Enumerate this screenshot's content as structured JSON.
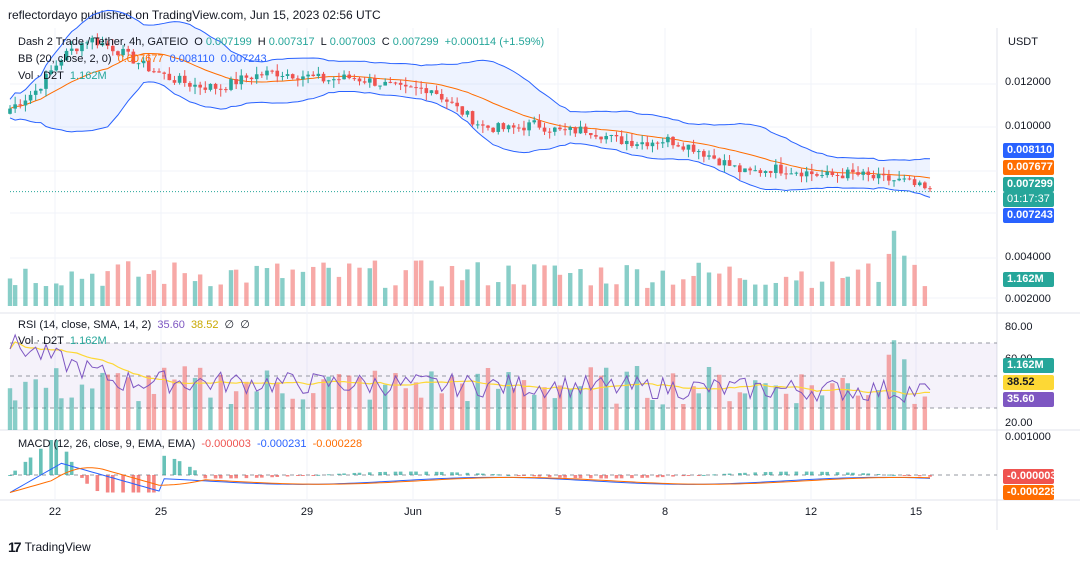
{
  "header": {
    "published": "reflectordayo published on TradingView.com, Jun 15, 2023 02:56 UTC"
  },
  "legend": {
    "symbol": "Dash 2 Trade / Tether, 4h, GATEIO",
    "o_label": "O",
    "o": "0.007199",
    "h_label": "H",
    "h": "0.007317",
    "l_label": "L",
    "l": "0.007003",
    "c_label": "C",
    "c": "0.007299",
    "chg": "+0.000114 (+1.59%)",
    "bb_label": "BB (20, close, 2, 0)",
    "bb_mid": "0.007677",
    "bb_up": "0.008110",
    "bb_low": "0.007243",
    "vol_label": "Vol · D2T",
    "vol": "1.162M",
    "rsi_label": "RSI (14, close, SMA, 14, 2)",
    "rsi": "35.60",
    "rsi_ma": "38.52",
    "rsi_z1": "∅",
    "rsi_z2": "∅",
    "vol2_label": "Vol · D2T",
    "vol2": "1.162M",
    "macd_label": "MACD (12, 26, close, 9, EMA, EMA)",
    "macd_hist": "-0.000003",
    "macd": "-0.000231",
    "macd_sig": "-0.000228"
  },
  "price_axis": {
    "currency": "USDT",
    "ticks": [
      "0.012000",
      "0.010000",
      "0.004000",
      "0.002000"
    ],
    "tags": {
      "bb_up": "0.008110",
      "bb_mid": "0.007677",
      "close": "0.007299",
      "countdown": "01:17:37",
      "bb_low": "0.007243",
      "vol": "1.162M"
    }
  },
  "rsi_axis": {
    "ticks": [
      "80.00",
      "60.00",
      "20.00"
    ],
    "tags": {
      "vol": "1.162M",
      "rsi_ma": "38.52",
      "rsi": "35.60"
    }
  },
  "macd_axis": {
    "ticks": [
      "0.001000"
    ],
    "tags": {
      "hist": "-0.000003",
      "sig": "-0.000228"
    }
  },
  "x_axis": {
    "labels": [
      "22",
      "25",
      "29",
      "Jun",
      "5",
      "8",
      "12",
      "15"
    ]
  },
  "footer": {
    "brand": "TradingView",
    "logo": "17"
  },
  "colors": {
    "up": "#26a69a",
    "down": "#ef5350",
    "bb": "#2962ff",
    "bbmid": "#ff6d00",
    "rsi": "#7e57c2",
    "rsima": "#fdd835",
    "macd": "#2962ff",
    "signal": "#ff6d00"
  },
  "chart_data": {
    "type": "candlestick",
    "title": "Dash 2 Trade / Tether, 4h, GATEIO",
    "x_labels": [
      "22",
      "25",
      "29",
      "Jun",
      "5",
      "8",
      "12",
      "15"
    ],
    "price_close_path": [
      0.0105,
      0.0112,
      0.0125,
      0.0132,
      0.0128,
      0.0122,
      0.0117,
      0.0114,
      0.0113,
      0.0117,
      0.0119,
      0.0118,
      0.0116,
      0.0117,
      0.0115,
      0.0112,
      0.0113,
      0.0105,
      0.0098,
      0.0097,
      0.0099,
      0.0096,
      0.0097,
      0.0093,
      0.0092,
      0.0093,
      0.009,
      0.0085,
      0.008,
      0.0082,
      0.0081,
      0.0079,
      0.008,
      0.0078,
      0.0077,
      0.0073
    ],
    "bb_upper": "0.008110",
    "bb_middle": "0.007677",
    "bb_lower": "0.007243",
    "last_close": "0.007299",
    "volume_last": "1.162M",
    "rsi": "35.60",
    "rsi_ma": "38.52",
    "macd": "-0.000231",
    "macd_signal": "-0.000228",
    "macd_hist": "-0.000003"
  }
}
